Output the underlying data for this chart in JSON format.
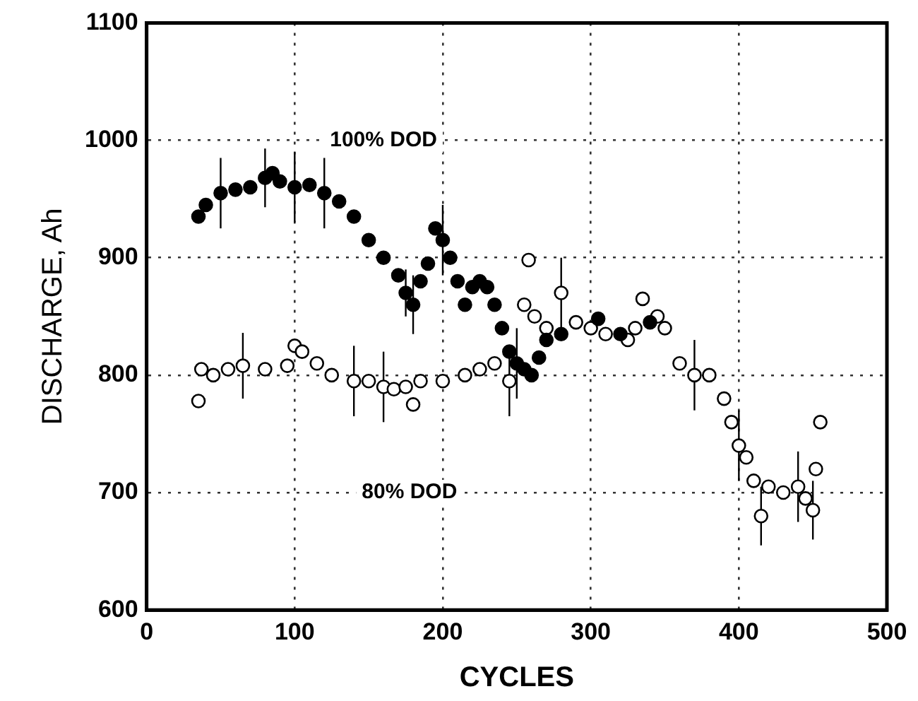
{
  "chart_data": {
    "type": "scatter",
    "xlabel": "CYCLES",
    "ylabel": "DISCHARGE, Ah",
    "xlim": [
      0,
      500
    ],
    "xticks": [
      0,
      100,
      200,
      300,
      400,
      500
    ],
    "ylim": [
      600,
      1100
    ],
    "yticks": [
      600,
      700,
      800,
      900,
      1000,
      1100
    ],
    "grid": true,
    "marker": "circle",
    "legend": false,
    "annotations": [
      "100% DOD",
      "80% DOD"
    ],
    "series": [
      {
        "color": "#000000",
        "x": [
          35,
          40,
          50,
          60,
          70,
          80,
          85,
          90,
          100,
          110,
          120,
          130,
          140,
          150,
          160,
          170,
          175,
          180,
          185,
          190,
          195,
          200,
          205,
          210,
          215,
          220,
          225,
          230,
          235,
          240,
          245,
          250,
          255,
          260,
          265,
          270,
          280,
          305,
          320,
          340
        ],
        "values": [
          935,
          945,
          955,
          958,
          960,
          968,
          972,
          965,
          960,
          962,
          955,
          948,
          935,
          915,
          900,
          885,
          870,
          860,
          880,
          895,
          925,
          915,
          900,
          880,
          860,
          875,
          880,
          875,
          860,
          840,
          820,
          810,
          805,
          800,
          815,
          830,
          835,
          848,
          835,
          845
        ],
        "errors": [
          null,
          null,
          30,
          null,
          null,
          25,
          null,
          null,
          30,
          null,
          30,
          null,
          null,
          null,
          null,
          null,
          20,
          25,
          null,
          null,
          null,
          30,
          null,
          null,
          null,
          null,
          null,
          null,
          null,
          null,
          null,
          30,
          null,
          null,
          null,
          null,
          null,
          null,
          null,
          null
        ]
      },
      {
        "color": "#ffffff",
        "x": [
          35,
          37,
          45,
          55,
          65,
          80,
          95,
          100,
          105,
          115,
          125,
          140,
          150,
          160,
          167,
          175,
          180,
          185,
          200,
          215,
          225,
          235,
          245,
          250,
          255,
          258,
          262,
          270,
          280,
          290,
          300,
          310,
          325,
          330,
          335,
          340,
          345,
          350,
          360,
          370,
          380,
          390,
          395,
          400,
          405,
          410,
          415,
          420,
          430,
          440,
          445,
          450,
          452,
          455
        ],
        "values": [
          778,
          805,
          800,
          805,
          808,
          805,
          808,
          825,
          820,
          810,
          800,
          795,
          795,
          790,
          788,
          790,
          775,
          795,
          795,
          800,
          805,
          810,
          795,
          null,
          860,
          898,
          850,
          840,
          870,
          845,
          840,
          835,
          830,
          840,
          865,
          null,
          850,
          840,
          810,
          800,
          800,
          780,
          760,
          740,
          730,
          710,
          680,
          705,
          700,
          705,
          695,
          685,
          720,
          760
        ],
        "errors": [
          null,
          null,
          null,
          null,
          28,
          null,
          null,
          null,
          null,
          null,
          null,
          30,
          null,
          30,
          null,
          null,
          null,
          null,
          null,
          null,
          null,
          null,
          30,
          null,
          null,
          null,
          null,
          null,
          30,
          null,
          null,
          null,
          null,
          null,
          null,
          null,
          null,
          null,
          null,
          30,
          null,
          null,
          null,
          30,
          null,
          null,
          25,
          null,
          null,
          30,
          null,
          25,
          null,
          null
        ]
      }
    ]
  }
}
